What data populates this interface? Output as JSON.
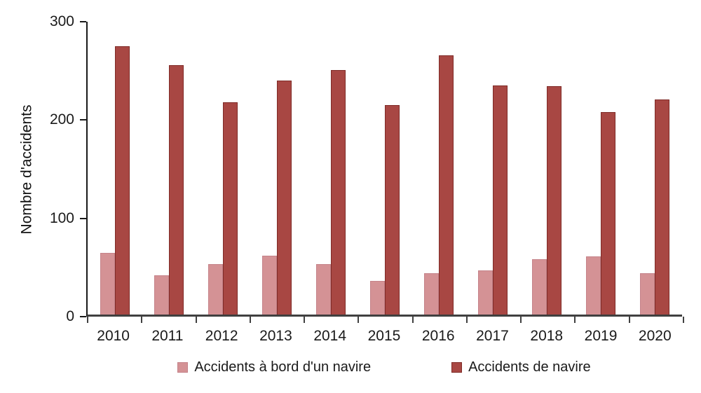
{
  "chart_data": {
    "type": "bar",
    "title": "",
    "xlabel": "",
    "ylabel": "Nombre d'accidents",
    "ylim": [
      0,
      300
    ],
    "yticks": [
      0,
      100,
      200,
      300
    ],
    "grid": false,
    "legend_position": "bottom",
    "categories": [
      "2010",
      "2011",
      "2012",
      "2013",
      "2014",
      "2015",
      "2016",
      "2017",
      "2018",
      "2019",
      "2020"
    ],
    "series": [
      {
        "name": "Accidents à bord d'un navire",
        "color": "#d49295",
        "border_color": "#c5838a",
        "values": [
          63,
          40,
          51,
          60,
          51,
          34,
          42,
          45,
          56,
          59,
          42
        ]
      },
      {
        "name": "Accidents de navire",
        "color": "#a84743",
        "border_color": "#7f2b27",
        "values": [
          273,
          254,
          216,
          238,
          249,
          213,
          264,
          233,
          232,
          206,
          219
        ]
      }
    ]
  }
}
